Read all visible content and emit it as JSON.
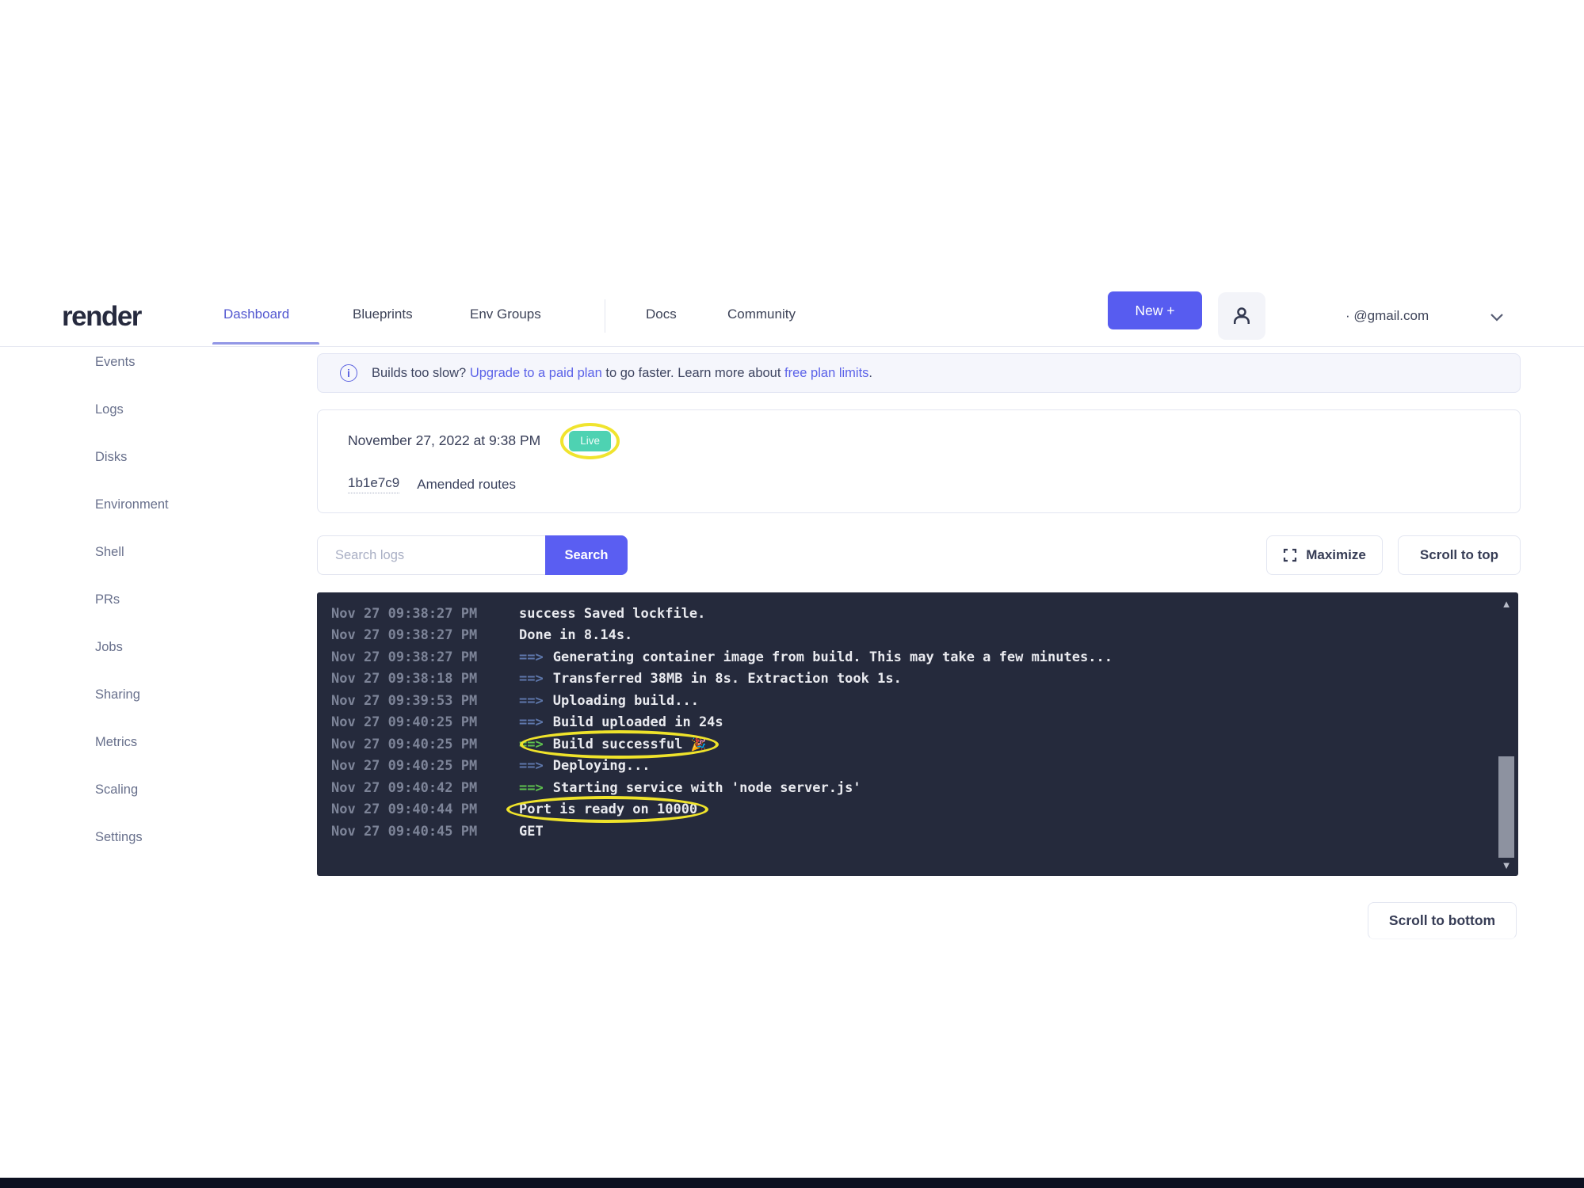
{
  "brand": {
    "logo_text": "render"
  },
  "header": {
    "nav_items": [
      {
        "label": "Dashboard",
        "active": true
      },
      {
        "label": "Blueprints",
        "active": false
      },
      {
        "label": "Env Groups",
        "active": false
      },
      {
        "label": "Docs",
        "active": false
      },
      {
        "label": "Community",
        "active": false
      }
    ],
    "new_button_label": "New +",
    "account_email": "· @gmail.com"
  },
  "sidebar": {
    "items": [
      "Events",
      "Logs",
      "Disks",
      "Environment",
      "Shell",
      "PRs",
      "Jobs",
      "Sharing",
      "Metrics",
      "Scaling",
      "Settings"
    ]
  },
  "banner": {
    "text_before_link1": "Builds too slow? ",
    "link1": "Upgrade to a paid plan",
    "text_between": " to go faster. Learn more about ",
    "link2": "free plan limits",
    "text_after": "."
  },
  "deploy": {
    "date": "November 27, 2022 at 9:38 PM",
    "status_badge": "Live",
    "commit_hash": "1b1e7c9",
    "commit_message": "Amended routes"
  },
  "log_controls": {
    "search_placeholder": "Search logs",
    "search_button": "Search",
    "maximize_button": "Maximize",
    "scroll_top_button": "Scroll to top",
    "scroll_bottom_button": "Scroll to bottom"
  },
  "terminal": {
    "arrow_glyph": "==>",
    "lines": [
      {
        "timestamp": "Nov 27 09:38:27 PM",
        "arrow": null,
        "text": "success Saved lockfile.",
        "emoji": null,
        "annotated": false
      },
      {
        "timestamp": "Nov 27 09:38:27 PM",
        "arrow": null,
        "text": "Done in 8.14s.",
        "emoji": null,
        "annotated": false
      },
      {
        "timestamp": "Nov 27 09:38:27 PM",
        "arrow": "blue",
        "text": "Generating container image from build. This may take a few minutes...",
        "emoji": null,
        "annotated": false
      },
      {
        "timestamp": "Nov 27 09:38:18 PM",
        "arrow": "blue",
        "text": "Transferred 38MB in 8s. Extraction took 1s.",
        "emoji": null,
        "annotated": false
      },
      {
        "timestamp": "Nov 27 09:39:53 PM",
        "arrow": "blue",
        "text": "Uploading build...",
        "emoji": null,
        "annotated": false
      },
      {
        "timestamp": "Nov 27 09:40:25 PM",
        "arrow": "blue",
        "text": "Build uploaded in 24s",
        "emoji": null,
        "annotated": false
      },
      {
        "timestamp": "Nov 27 09:40:25 PM",
        "arrow": "green",
        "text": "Build successful",
        "emoji": "🎉",
        "annotated": true
      },
      {
        "timestamp": "Nov 27 09:40:25 PM",
        "arrow": "blue",
        "text": "Deploying...",
        "emoji": null,
        "annotated": false
      },
      {
        "timestamp": "Nov 27 09:40:42 PM",
        "arrow": "green",
        "text": "Starting service with 'node server.js'",
        "emoji": null,
        "annotated": false
      },
      {
        "timestamp": "Nov 27 09:40:44 PM",
        "arrow": null,
        "text": "Port is ready on 10000",
        "emoji": null,
        "annotated": true
      },
      {
        "timestamp": "Nov 27 09:40:45 PM",
        "arrow": null,
        "text": "GET",
        "emoji": null,
        "annotated": false
      }
    ]
  },
  "colors": {
    "accent_indigo": "#575cf0",
    "live_teal": "#4ed2b2",
    "annotation_yellow": "#f0e42e",
    "terminal_background": "#252a3c",
    "arrow_blue": "#5e77ab",
    "arrow_green": "#5fc24e"
  }
}
